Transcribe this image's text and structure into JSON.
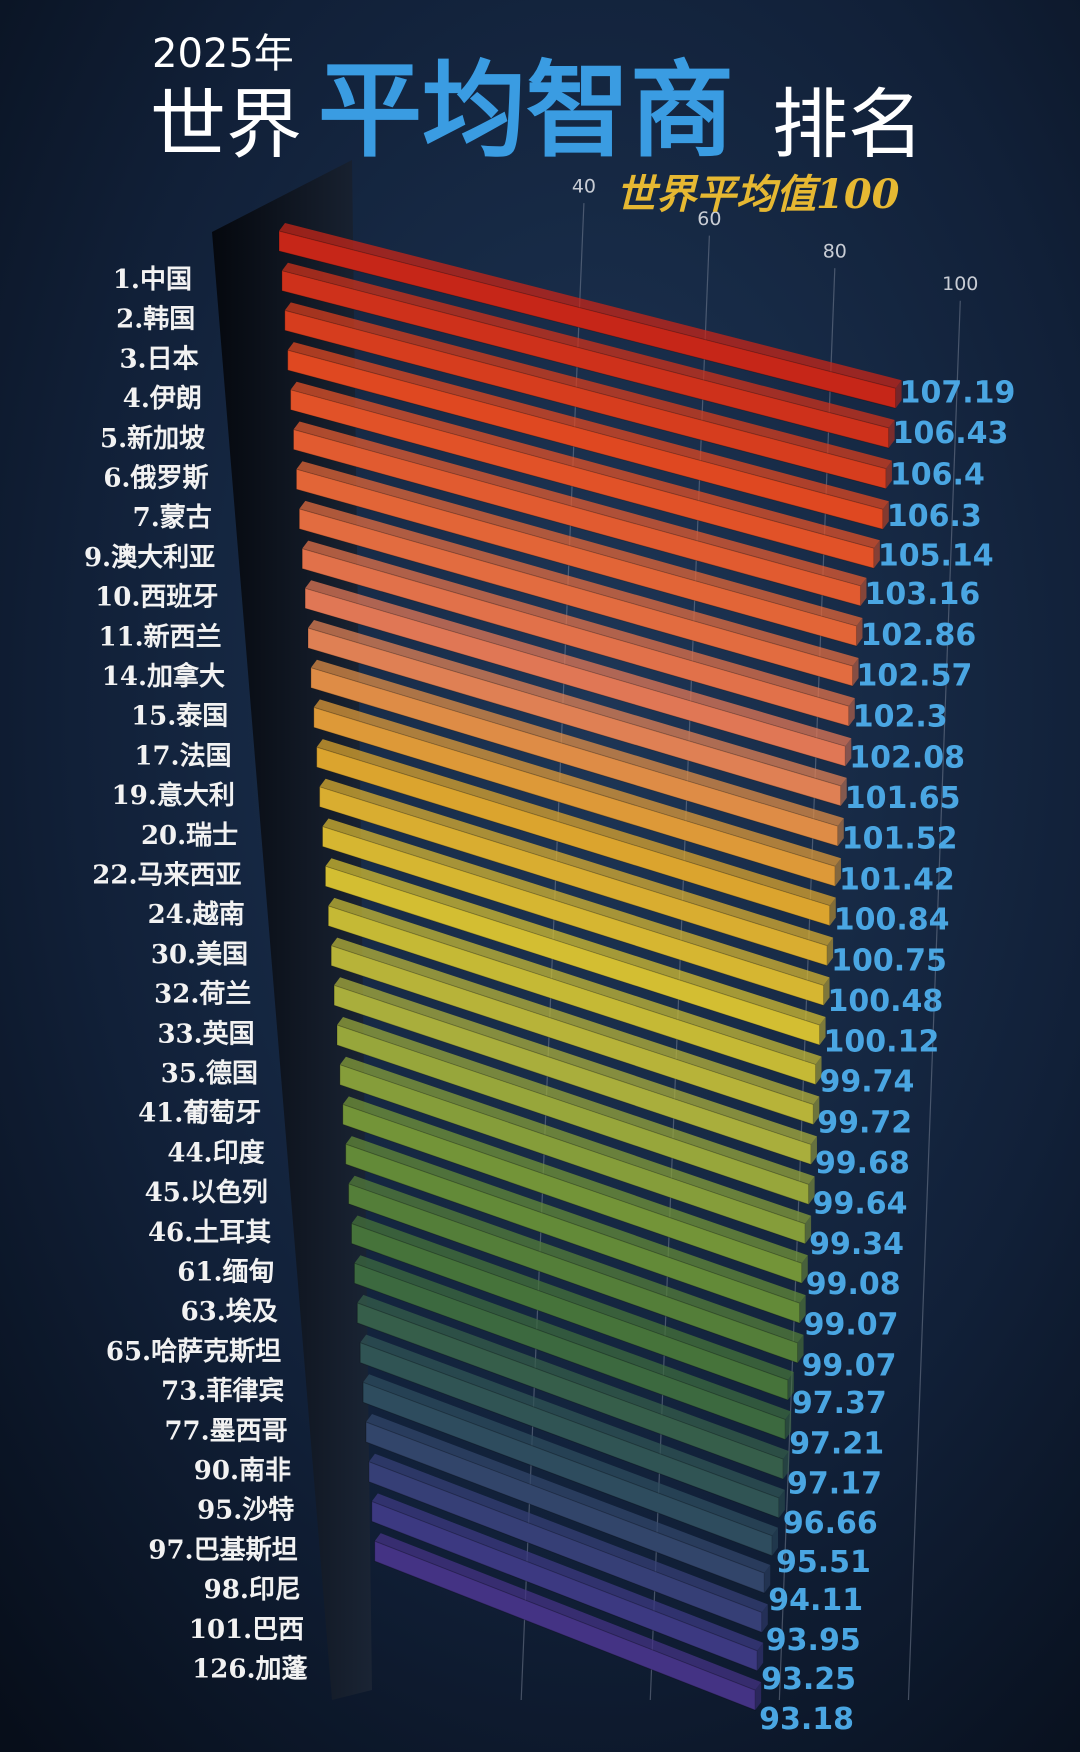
{
  "chart_data": {
    "type": "bar",
    "title_year": "2025年",
    "title_pre": "世界",
    "title_main": "平均智商",
    "title_post": "排名",
    "subtitle": "世界平均值100",
    "categories": [
      "1.中国",
      "2.韩国",
      "3.日本",
      "4.伊朗",
      "5.新加坡",
      "6.俄罗斯",
      "7.蒙古",
      "9.澳大利亚",
      "10.西班牙",
      "11.新西兰",
      "14.加拿大",
      "15.泰国",
      "17.法国",
      "19.意大利",
      "20.瑞士",
      "22.马来西亚",
      "24.越南",
      "30.美国",
      "32.荷兰",
      "33.英国",
      "35.德国",
      "41.葡萄牙",
      "44.印度",
      "45.以色列",
      "46.土耳其",
      "61.缅甸",
      "63.埃及",
      "65.哈萨克斯坦",
      "73.菲律宾",
      "77.墨西哥",
      "90.南非",
      "95.沙特",
      "97.巴基斯坦",
      "98.印尼",
      "101.巴西",
      "126.加蓬"
    ],
    "values": [
      107.19,
      106.43,
      106.4,
      106.3,
      105.14,
      103.16,
      102.86,
      102.57,
      102.3,
      102.08,
      101.65,
      101.52,
      101.42,
      100.84,
      100.75,
      100.48,
      100.12,
      99.74,
      99.72,
      99.68,
      99.64,
      99.34,
      99.08,
      99.07,
      99.07,
      97.37,
      97.21,
      97.17,
      96.66,
      95.51,
      94.11,
      93.95,
      93.25,
      93.18,
      null,
      null
    ],
    "xlim": [
      0,
      110
    ],
    "xticks": [
      40,
      60,
      80,
      100
    ],
    "grid": true,
    "colors": [
      "#c62618",
      "#e04a22",
      "#e2683a",
      "#e07a5a",
      "#dca22e",
      "#d4be32",
      "#a8ae3c",
      "#6e9238",
      "#3f6e3a",
      "#2c4e5a",
      "#3a3a80",
      "#55288c"
    ],
    "value_label_color": "#4aa6e2"
  }
}
